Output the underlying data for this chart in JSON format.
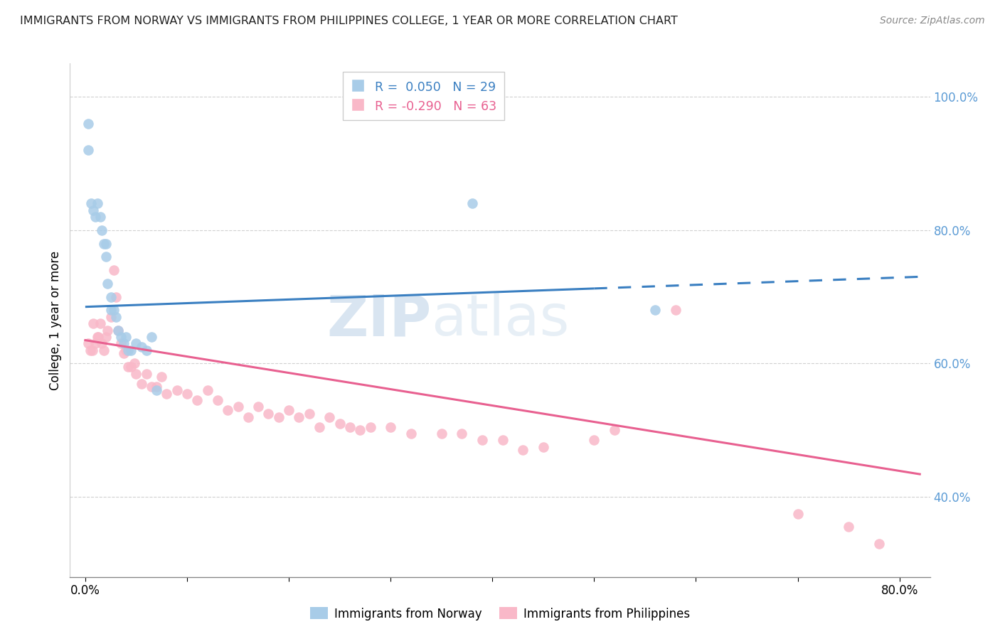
{
  "title": "IMMIGRANTS FROM NORWAY VS IMMIGRANTS FROM PHILIPPINES COLLEGE, 1 YEAR OR MORE CORRELATION CHART",
  "source": "Source: ZipAtlas.com",
  "ylabel": "College, 1 year or more",
  "x_tick_labels": [
    "0.0%",
    "",
    "",
    "",
    "",
    "",
    "",
    "",
    "80.0%"
  ],
  "x_tick_positions": [
    0.0,
    0.1,
    0.2,
    0.3,
    0.4,
    0.5,
    0.6,
    0.7,
    0.8
  ],
  "y_ticks_right": [
    0.4,
    0.6,
    0.8,
    1.0
  ],
  "y_tick_labels_right": [
    "40.0%",
    "60.0%",
    "80.0%",
    "100.0%"
  ],
  "norway_R": "0.050",
  "norway_N": "29",
  "philippines_R": "-0.290",
  "philippines_N": "63",
  "norway_color": "#a8cce8",
  "philippines_color": "#f9b8c8",
  "norway_line_color": "#3a7fc1",
  "philippines_line_color": "#e86090",
  "norway_scatter_x": [
    0.003,
    0.003,
    0.006,
    0.008,
    0.01,
    0.012,
    0.015,
    0.016,
    0.018,
    0.02,
    0.02,
    0.022,
    0.025,
    0.025,
    0.028,
    0.03,
    0.032,
    0.035,
    0.038,
    0.04,
    0.042,
    0.045,
    0.05,
    0.055,
    0.06,
    0.065,
    0.07,
    0.38,
    0.56
  ],
  "norway_scatter_y": [
    0.96,
    0.92,
    0.84,
    0.83,
    0.82,
    0.84,
    0.82,
    0.8,
    0.78,
    0.78,
    0.76,
    0.72,
    0.7,
    0.68,
    0.68,
    0.67,
    0.65,
    0.64,
    0.63,
    0.64,
    0.62,
    0.62,
    0.63,
    0.625,
    0.62,
    0.64,
    0.56,
    0.84,
    0.68
  ],
  "philippines_scatter_x": [
    0.003,
    0.005,
    0.007,
    0.008,
    0.01,
    0.012,
    0.013,
    0.015,
    0.016,
    0.018,
    0.02,
    0.022,
    0.025,
    0.028,
    0.03,
    0.032,
    0.035,
    0.038,
    0.04,
    0.042,
    0.045,
    0.048,
    0.05,
    0.055,
    0.06,
    0.065,
    0.07,
    0.075,
    0.08,
    0.09,
    0.1,
    0.11,
    0.12,
    0.13,
    0.14,
    0.15,
    0.16,
    0.17,
    0.18,
    0.19,
    0.2,
    0.21,
    0.22,
    0.23,
    0.24,
    0.25,
    0.26,
    0.27,
    0.28,
    0.3,
    0.32,
    0.35,
    0.37,
    0.39,
    0.41,
    0.43,
    0.45,
    0.5,
    0.52,
    0.58,
    0.7,
    0.75,
    0.78
  ],
  "philippines_scatter_y": [
    0.63,
    0.62,
    0.62,
    0.66,
    0.63,
    0.64,
    0.64,
    0.66,
    0.63,
    0.62,
    0.64,
    0.65,
    0.67,
    0.74,
    0.7,
    0.65,
    0.63,
    0.615,
    0.62,
    0.595,
    0.595,
    0.6,
    0.585,
    0.57,
    0.585,
    0.565,
    0.565,
    0.58,
    0.555,
    0.56,
    0.555,
    0.545,
    0.56,
    0.545,
    0.53,
    0.535,
    0.52,
    0.535,
    0.525,
    0.52,
    0.53,
    0.52,
    0.525,
    0.505,
    0.52,
    0.51,
    0.505,
    0.5,
    0.505,
    0.505,
    0.495,
    0.495,
    0.495,
    0.485,
    0.485,
    0.47,
    0.475,
    0.485,
    0.5,
    0.68,
    0.375,
    0.355,
    0.33
  ],
  "norway_line_x0": 0.0,
  "norway_line_x_solid_end": 0.5,
  "norway_line_x_dashed_end": 0.82,
  "norway_line_y0": 0.685,
  "norway_line_slope": 0.055,
  "philippines_line_x0": 0.0,
  "philippines_line_x_end": 0.82,
  "philippines_line_y0": 0.635,
  "philippines_line_slope": -0.245,
  "watermark_zip": "ZIP",
  "watermark_atlas": "atlas",
  "background_color": "#ffffff",
  "grid_color": "#d0d0d0",
  "right_axis_color": "#5b9bd5",
  "ylim": [
    0.28,
    1.05
  ],
  "xlim": [
    -0.015,
    0.83
  ]
}
